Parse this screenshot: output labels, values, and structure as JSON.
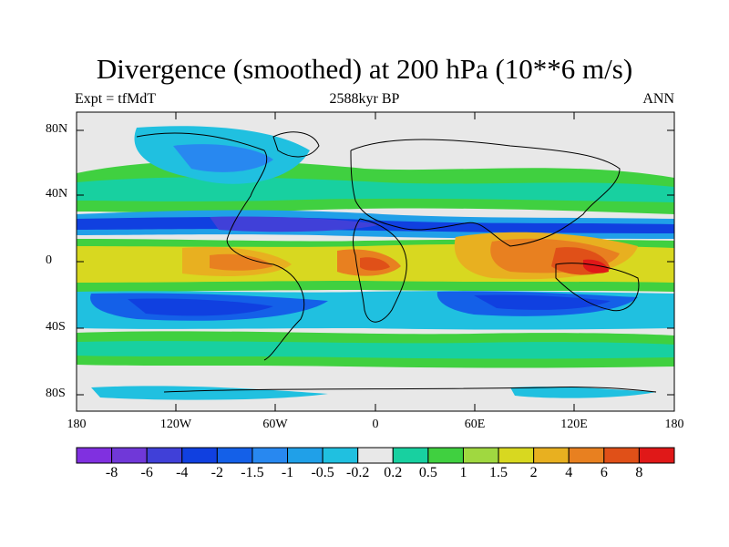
{
  "title": "Divergence (smoothed) at 200 hPa (10**6 m/s)",
  "subtitle_left": "Expt = tfMdT",
  "subtitle_center": "2588kyr BP",
  "subtitle_right": "ANN",
  "lat_ticks": [
    "80N",
    "40N",
    "0",
    "40S",
    "80S"
  ],
  "lon_ticks": [
    "180",
    "120W",
    "60W",
    "0",
    "60E",
    "120E",
    "180"
  ],
  "colorbar": {
    "colors": [
      "#8030e0",
      "#7038d8",
      "#4040d8",
      "#1040e0",
      "#1460e8",
      "#2888f0",
      "#20a0e8",
      "#20c0e0",
      "#e8e8e8",
      "#18d0a0",
      "#40d040",
      "#a0d840",
      "#d8d820",
      "#e8b020",
      "#e88020",
      "#e05018",
      "#e01818"
    ],
    "labels": [
      "-8",
      "-6",
      "-4",
      "-2",
      "-1.5",
      "-1",
      "-0.5",
      "-0.2",
      "0.2",
      "0.5",
      "1",
      "1.5",
      "2",
      "4",
      "6",
      "8"
    ]
  }
}
